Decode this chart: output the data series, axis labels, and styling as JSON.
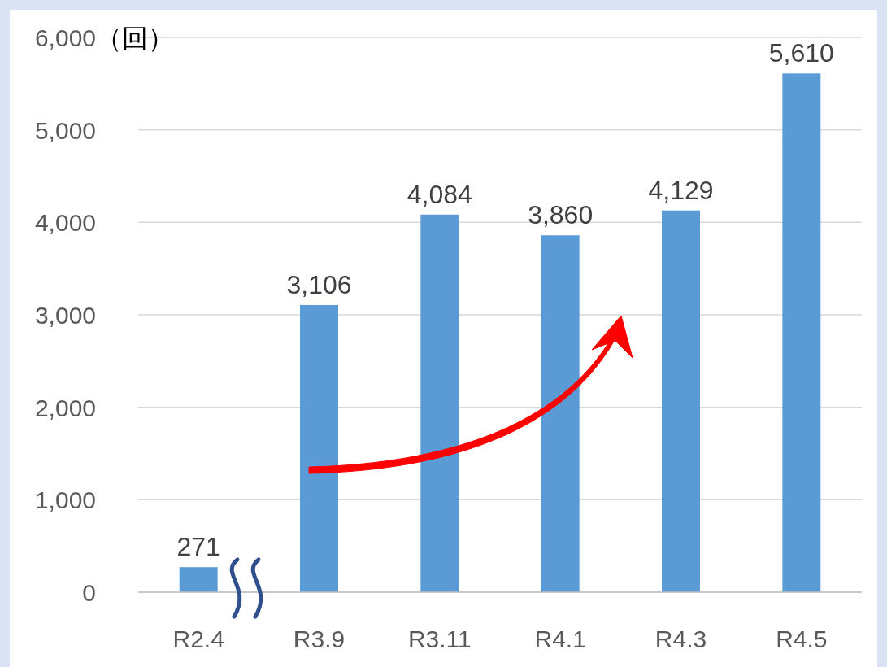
{
  "chart_data": {
    "type": "bar",
    "ylabel": "（回）",
    "categories": [
      "R2.4",
      "R3.9",
      "R3.11",
      "R4.1",
      "R4.3",
      "R4.5"
    ],
    "values": [
      271,
      3106,
      4084,
      3860,
      4129,
      5610
    ],
    "value_labels": [
      "271",
      "3,106",
      "4,084",
      "3,860",
      "4,129",
      "5,610"
    ],
    "color": "#5b9bd5",
    "ylim": [
      0,
      6000
    ],
    "yticks": [
      {
        "value": 0,
        "label": "0"
      },
      {
        "value": 1000,
        "label": "1,000"
      },
      {
        "value": 2000,
        "label": "2,000"
      },
      {
        "value": 3000,
        "label": "3,000"
      },
      {
        "value": 4000,
        "label": "4,000"
      },
      {
        "value": 5000,
        "label": "5,000"
      },
      {
        "value": 6000,
        "label": "6,000"
      }
    ],
    "grid": "y"
  }
}
